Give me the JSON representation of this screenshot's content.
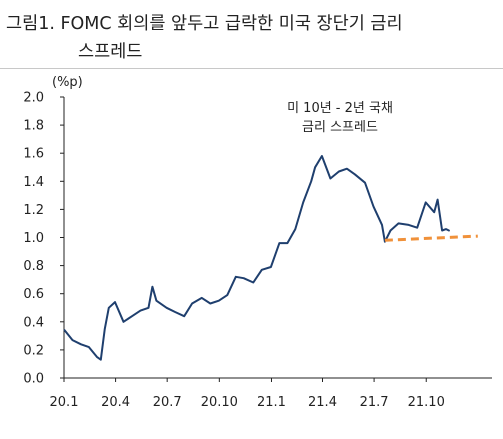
{
  "title_line_1": "그림1. FOMC 회의를 앞두고 급락한 미국 장단기 금리",
  "title_line_2": "스프레드",
  "chart_data": {
    "type": "line",
    "unit_label": "(%p)",
    "annotation": [
      "미 10년 - 2년 국채",
      "금리 스프레드"
    ],
    "x_ticks": [
      "20.1",
      "20.4",
      "20.7",
      "20.10",
      "21.1",
      "21.4",
      "21.7",
      "21.10"
    ],
    "y_ticks": [
      "0.0",
      "0.2",
      "0.4",
      "0.6",
      "0.8",
      "1.0",
      "1.2",
      "1.4",
      "1.6",
      "1.8",
      "2.0"
    ],
    "ylim": [
      0,
      2.0
    ],
    "grid": false,
    "series": [
      {
        "color": "#1f3f6e",
        "style": "solid",
        "points": [
          [
            "2020-01-02",
            0.34
          ],
          [
            "2020-01-16",
            0.27
          ],
          [
            "2020-01-31",
            0.24
          ],
          [
            "2020-02-14",
            0.22
          ],
          [
            "2020-02-28",
            0.15
          ],
          [
            "2020-03-06",
            0.13
          ],
          [
            "2020-03-13",
            0.35
          ],
          [
            "2020-03-20",
            0.5
          ],
          [
            "2020-03-31",
            0.54
          ],
          [
            "2020-04-15",
            0.4
          ],
          [
            "2020-04-30",
            0.44
          ],
          [
            "2020-05-15",
            0.48
          ],
          [
            "2020-05-29",
            0.5
          ],
          [
            "2020-06-05",
            0.65
          ],
          [
            "2020-06-12",
            0.55
          ],
          [
            "2020-06-30",
            0.5
          ],
          [
            "2020-07-15",
            0.47
          ],
          [
            "2020-07-31",
            0.44
          ],
          [
            "2020-08-14",
            0.53
          ],
          [
            "2020-08-31",
            0.57
          ],
          [
            "2020-09-15",
            0.53
          ],
          [
            "2020-09-30",
            0.55
          ],
          [
            "2020-10-15",
            0.59
          ],
          [
            "2020-10-30",
            0.72
          ],
          [
            "2020-11-13",
            0.71
          ],
          [
            "2020-11-30",
            0.68
          ],
          [
            "2020-12-15",
            0.77
          ],
          [
            "2020-12-31",
            0.79
          ],
          [
            "2021-01-15",
            0.96
          ],
          [
            "2021-01-29",
            0.96
          ],
          [
            "2021-02-12",
            1.06
          ],
          [
            "2021-02-26",
            1.25
          ],
          [
            "2021-03-12",
            1.4
          ],
          [
            "2021-03-19",
            1.5
          ],
          [
            "2021-03-31",
            1.58
          ],
          [
            "2021-04-15",
            1.42
          ],
          [
            "2021-04-30",
            1.47
          ],
          [
            "2021-05-14",
            1.49
          ],
          [
            "2021-05-28",
            1.45
          ],
          [
            "2021-06-15",
            1.39
          ],
          [
            "2021-06-30",
            1.22
          ],
          [
            "2021-07-15",
            1.09
          ],
          [
            "2021-07-20",
            0.97
          ],
          [
            "2021-07-30",
            1.05
          ],
          [
            "2021-08-13",
            1.1
          ],
          [
            "2021-08-31",
            1.09
          ],
          [
            "2021-09-15",
            1.07
          ],
          [
            "2021-09-30",
            1.25
          ],
          [
            "2021-10-15",
            1.18
          ],
          [
            "2021-10-21",
            1.27
          ],
          [
            "2021-10-29",
            1.05
          ],
          [
            "2021-11-05",
            1.06
          ],
          [
            "2021-11-10",
            1.05
          ]
        ]
      },
      {
        "color": "#f0913a",
        "style": "dashed",
        "points": [
          [
            "2021-07-20",
            0.98
          ],
          [
            "2021-12-31",
            1.01
          ]
        ]
      }
    ]
  }
}
